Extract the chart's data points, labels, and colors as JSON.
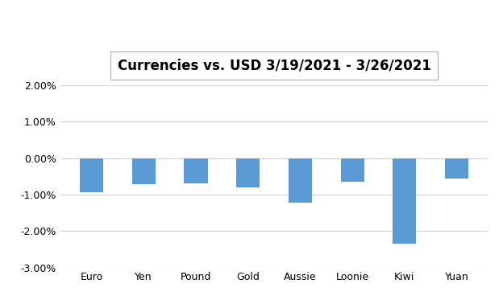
{
  "title": "Currencies vs. USD 3/19/2021 - 3/26/2021",
  "categories": [
    "Euro",
    "Yen",
    "Pound",
    "Gold",
    "Aussie",
    "Loonie",
    "Kiwi",
    "Yuan"
  ],
  "values": [
    -0.0093,
    -0.0072,
    -0.007,
    -0.008,
    -0.0122,
    -0.0065,
    -0.0235,
    -0.0055
  ],
  "bar_color": "#5B9BD5",
  "ylim": [
    -0.03,
    0.02
  ],
  "yticks": [
    -0.03,
    -0.02,
    -0.01,
    0.0,
    0.01,
    0.02
  ],
  "background_color": "#FFFFFF",
  "grid_color": "#D0D0D0",
  "title_fontsize": 12,
  "tick_fontsize": 9,
  "title_box_color": "#FFFFFF",
  "title_box_edge": "#AAAAAA",
  "bar_width": 0.45
}
